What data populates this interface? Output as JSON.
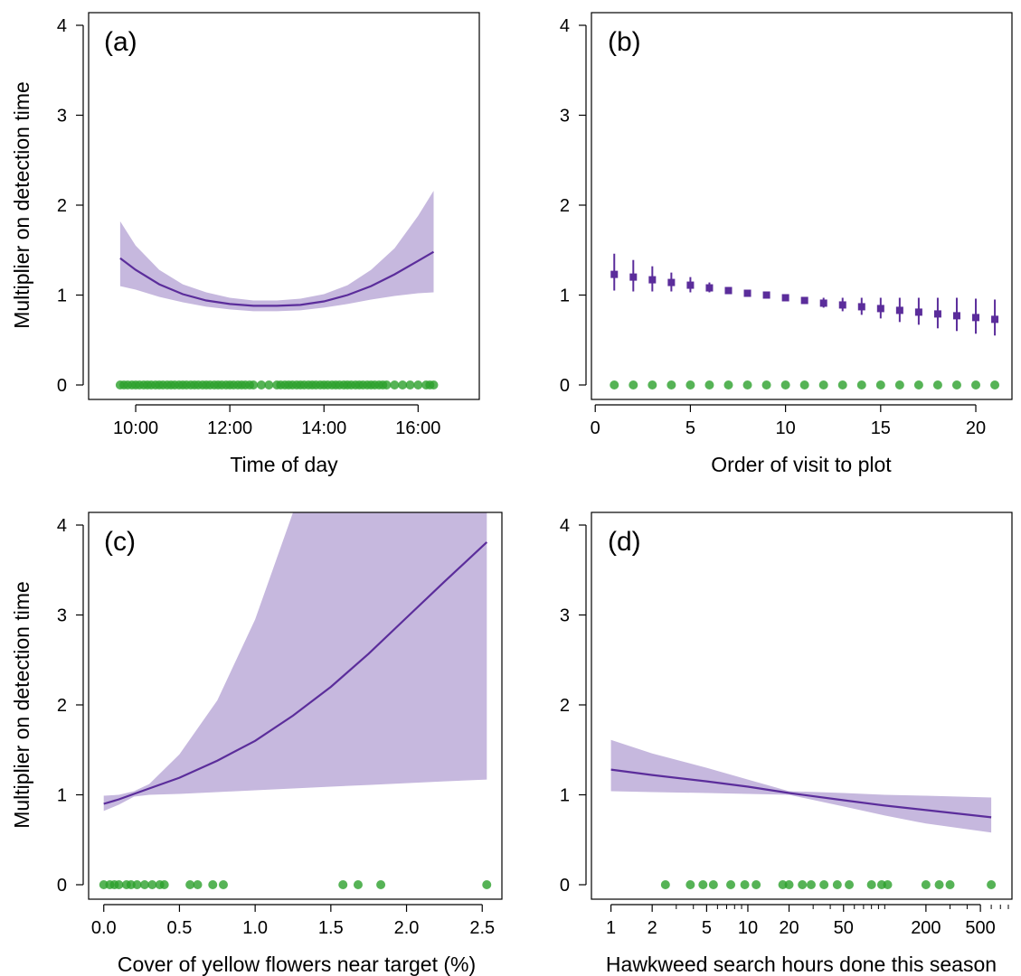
{
  "colors": {
    "line": "#5b2d9b",
    "band": "#c6b8de",
    "points": "#2ca02c",
    "points_faded": "#6abf6a",
    "axis": "#000000"
  },
  "chart_data": [
    {
      "id": "a",
      "type": "line",
      "panel_label": "(a)",
      "xlabel": "Time of day",
      "ylabel": "Multiplier on detection time",
      "xlim": [
        9.0,
        17.3
      ],
      "ylim": [
        0,
        4
      ],
      "x_ticks": [
        10,
        12,
        14,
        16
      ],
      "x_tick_labels": [
        "10:00",
        "12:00",
        "14:00",
        "16:00"
      ],
      "y_ticks": [
        0,
        1,
        2,
        3,
        4
      ],
      "y_tick_labels": [
        "0",
        "1",
        "2",
        "3",
        "4"
      ],
      "series": [
        {
          "kind": "line_with_band",
          "x": [
            9.67,
            10.0,
            10.5,
            11.0,
            11.5,
            12.0,
            12.5,
            13.0,
            13.5,
            14.0,
            14.5,
            15.0,
            15.5,
            16.0,
            16.33
          ],
          "y": [
            1.41,
            1.28,
            1.12,
            1.01,
            0.94,
            0.9,
            0.88,
            0.88,
            0.89,
            0.93,
            1.0,
            1.1,
            1.23,
            1.38,
            1.48
          ],
          "lower": [
            1.1,
            1.06,
            0.98,
            0.92,
            0.87,
            0.84,
            0.82,
            0.82,
            0.83,
            0.86,
            0.9,
            0.95,
            0.99,
            1.02,
            1.03
          ],
          "upper": [
            1.82,
            1.55,
            1.28,
            1.12,
            1.03,
            0.97,
            0.94,
            0.94,
            0.96,
            1.01,
            1.11,
            1.28,
            1.52,
            1.88,
            2.16
          ]
        },
        {
          "kind": "rug",
          "y": 0,
          "x": [
            9.67,
            9.75,
            9.83,
            9.92,
            10.0,
            10.08,
            10.17,
            10.25,
            10.33,
            10.42,
            10.5,
            10.58,
            10.67,
            10.75,
            10.83,
            10.92,
            11.0,
            11.08,
            11.17,
            11.25,
            11.33,
            11.42,
            11.5,
            11.58,
            11.67,
            11.75,
            11.83,
            11.92,
            12.0,
            12.08,
            12.17,
            12.25,
            12.33,
            12.42,
            12.5,
            12.67,
            12.83,
            13.0,
            13.08,
            13.17,
            13.25,
            13.33,
            13.42,
            13.5,
            13.58,
            13.67,
            13.75,
            13.83,
            13.92,
            14.0,
            14.08,
            14.17,
            14.25,
            14.33,
            14.42,
            14.5,
            14.58,
            14.67,
            14.75,
            14.83,
            14.92,
            15.0,
            15.08,
            15.17,
            15.25,
            15.33,
            15.5,
            15.67,
            15.83,
            16.0,
            16.17,
            16.25,
            16.33
          ]
        }
      ]
    },
    {
      "id": "b",
      "type": "scatter",
      "panel_label": "(b)",
      "xlabel": "Order of visit to plot",
      "ylabel": "",
      "xlim": [
        -0.2,
        21.9
      ],
      "ylim": [
        0,
        4
      ],
      "x_ticks": [
        0,
        5,
        10,
        15,
        20
      ],
      "x_tick_labels": [
        "0",
        "5",
        "10",
        "15",
        "20"
      ],
      "y_ticks": [
        0,
        1,
        2,
        3,
        4
      ],
      "y_tick_labels": [
        "0",
        "1",
        "2",
        "3",
        "4"
      ],
      "series": [
        {
          "kind": "points_with_errorbars",
          "x": [
            1,
            2,
            3,
            4,
            5,
            6,
            7,
            8,
            9,
            10,
            11,
            12,
            13,
            14,
            15,
            16,
            17,
            18,
            19,
            20,
            21
          ],
          "y": [
            1.23,
            1.2,
            1.17,
            1.14,
            1.11,
            1.08,
            1.05,
            1.02,
            1.0,
            0.97,
            0.94,
            0.91,
            0.89,
            0.87,
            0.85,
            0.83,
            0.81,
            0.79,
            0.77,
            0.75,
            0.73
          ],
          "lower": [
            1.05,
            1.04,
            1.04,
            1.04,
            1.03,
            1.03,
            1.02,
            1.0,
            0.99,
            0.95,
            0.9,
            0.86,
            0.82,
            0.78,
            0.74,
            0.7,
            0.67,
            0.63,
            0.6,
            0.57,
            0.55
          ],
          "upper": [
            1.46,
            1.39,
            1.32,
            1.25,
            1.2,
            1.14,
            1.09,
            1.05,
            1.02,
            0.99,
            0.98,
            0.97,
            0.97,
            0.97,
            0.97,
            0.97,
            0.97,
            0.97,
            0.97,
            0.96,
            0.95
          ]
        },
        {
          "kind": "rug",
          "y": 0,
          "x": [
            1,
            2,
            3,
            4,
            5,
            6,
            7,
            8,
            9,
            10,
            11,
            12,
            13,
            14,
            15,
            16,
            17,
            18,
            19,
            20,
            21
          ]
        }
      ]
    },
    {
      "id": "c",
      "type": "line",
      "panel_label": "(c)",
      "xlabel": "Cover of yellow flowers near target (%)",
      "ylabel": "Multiplier on detection time",
      "xlim": [
        -0.1,
        2.63
      ],
      "ylim": [
        0,
        4
      ],
      "x_ticks": [
        0.0,
        0.5,
        1.0,
        1.5,
        2.0,
        2.5
      ],
      "x_tick_labels": [
        "0.0",
        "0.5",
        "1.0",
        "1.5",
        "2.0",
        "2.5"
      ],
      "y_ticks": [
        0,
        1,
        2,
        3,
        4
      ],
      "y_tick_labels": [
        "0",
        "1",
        "2",
        "3",
        "4"
      ],
      "series": [
        {
          "kind": "line_with_band",
          "x": [
            0.0,
            0.1,
            0.2,
            0.3,
            0.5,
            0.75,
            1.0,
            1.25,
            1.5,
            1.75,
            2.0,
            2.25,
            2.53
          ],
          "y": [
            0.9,
            0.95,
            1.01,
            1.07,
            1.19,
            1.38,
            1.6,
            1.88,
            2.2,
            2.57,
            2.97,
            3.37,
            3.81
          ],
          "lower": [
            0.82,
            0.89,
            0.98,
            1.0,
            1.01,
            1.03,
            1.05,
            1.07,
            1.09,
            1.11,
            1.13,
            1.15,
            1.17
          ],
          "upper": [
            0.99,
            1.0,
            1.04,
            1.12,
            1.45,
            2.05,
            2.95,
            4.2,
            4.2,
            4.2,
            4.2,
            4.2,
            4.2
          ]
        },
        {
          "kind": "rug",
          "y": 0,
          "x": [
            0.0,
            0.04,
            0.07,
            0.1,
            0.15,
            0.18,
            0.22,
            0.27,
            0.32,
            0.37,
            0.4,
            0.57,
            0.62,
            0.72,
            0.79,
            1.58,
            1.68,
            1.83,
            2.53
          ]
        }
      ]
    },
    {
      "id": "d",
      "type": "line",
      "panel_label": "(d)",
      "xlabel": "Hawkweed search hours done this season",
      "ylabel": "",
      "x_scale": "log",
      "xlim": [
        0.72,
        850
      ],
      "ylim": [
        0,
        4
      ],
      "x_ticks": [
        1,
        2,
        5,
        10,
        20,
        50,
        200,
        500
      ],
      "x_tick_labels": [
        "1",
        "2",
        "5",
        "10",
        "20",
        "50",
        "200",
        "500"
      ],
      "y_ticks": [
        0,
        1,
        2,
        3,
        4
      ],
      "y_tick_labels": [
        "0",
        "1",
        "2",
        "3",
        "4"
      ],
      "series": [
        {
          "kind": "line_with_band",
          "x": [
            1,
            2,
            5,
            10,
            20,
            50,
            100,
            200,
            600
          ],
          "y": [
            1.28,
            1.22,
            1.15,
            1.09,
            1.02,
            0.94,
            0.88,
            0.83,
            0.75
          ],
          "lower": [
            1.04,
            1.03,
            1.02,
            1.01,
            1.0,
            0.87,
            0.77,
            0.68,
            0.58
          ],
          "upper": [
            1.61,
            1.46,
            1.3,
            1.17,
            1.04,
            1.02,
            1.0,
            0.99,
            0.97
          ]
        },
        {
          "kind": "rug",
          "y": 0,
          "x": [
            2.5,
            3.8,
            4.7,
            5.6,
            7.5,
            9.5,
            11.5,
            18,
            20,
            25,
            29,
            36,
            45,
            55,
            80,
            95,
            105,
            200,
            250,
            300,
            600
          ]
        }
      ]
    }
  ]
}
